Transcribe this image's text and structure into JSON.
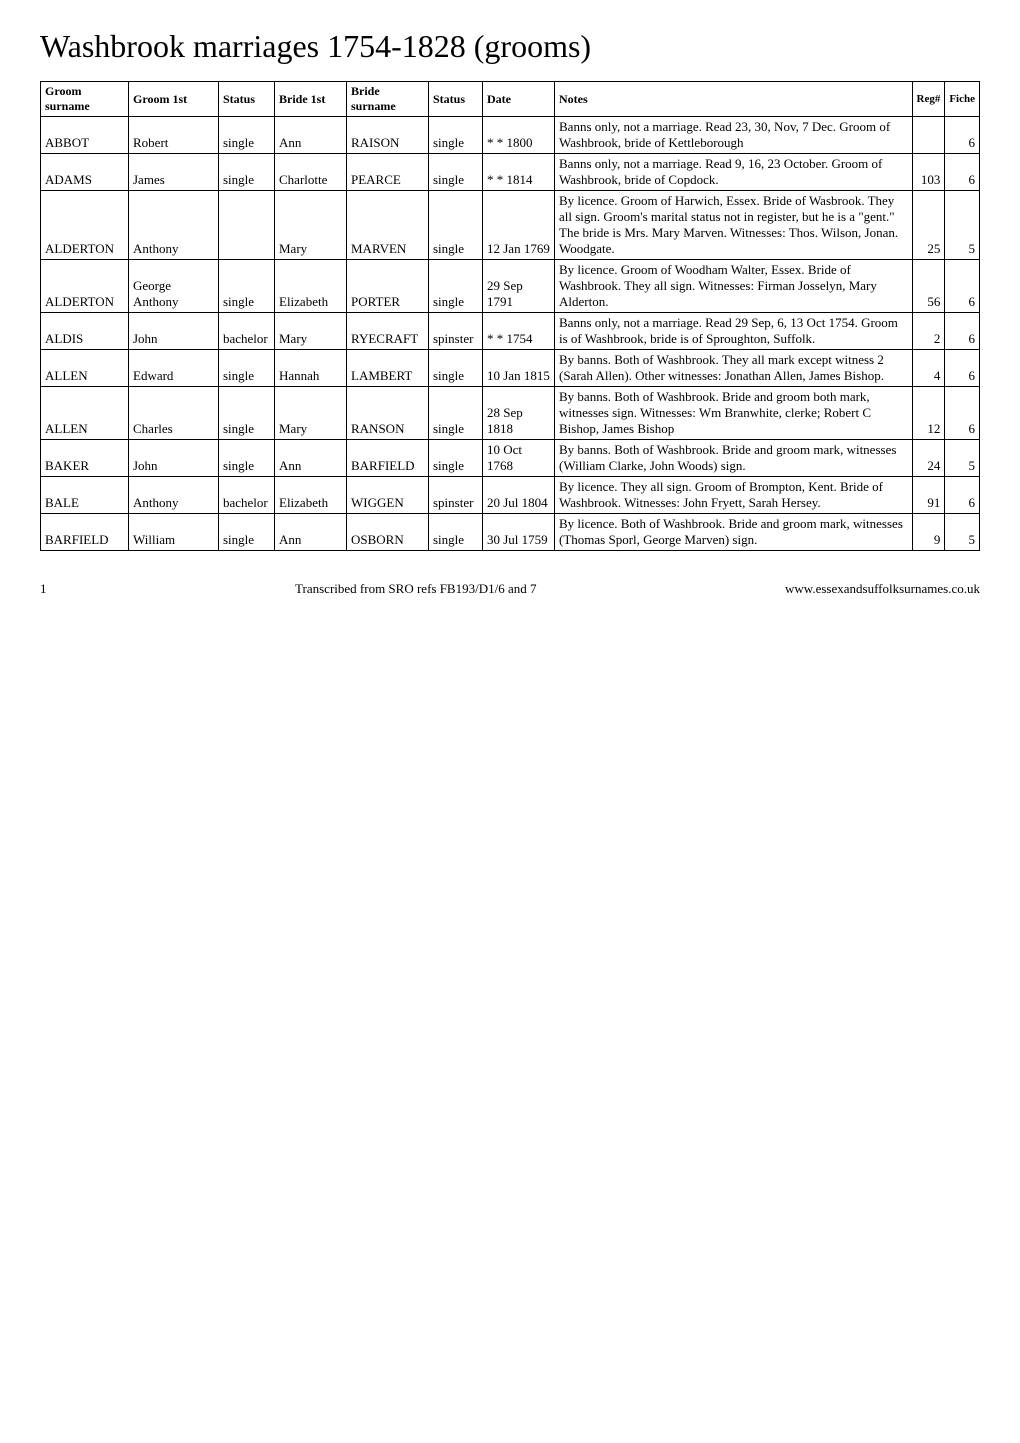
{
  "title": "Washbrook marriages 1754-1828 (grooms)",
  "columns": [
    "Groom surname",
    "Groom 1st",
    "Status",
    "Bride 1st",
    "Bride surname",
    "Status",
    "Date",
    "Notes",
    "Reg#",
    "Fiche"
  ],
  "rows": [
    {
      "groom_surname": "ABBOT",
      "groom_1st": "Robert",
      "status1": "single",
      "bride_1st": "Ann",
      "bride_surname": "RAISON",
      "status2": "single",
      "date": "* * 1800",
      "notes": "Banns only, not a marriage. Read 23, 30, Nov, 7 Dec. Groom of Washbrook, bride of Kettleborough",
      "reg": "",
      "fiche": "6"
    },
    {
      "groom_surname": "ADAMS",
      "groom_1st": "James",
      "status1": "single",
      "bride_1st": "Charlotte",
      "bride_surname": "PEARCE",
      "status2": "single",
      "date": "* * 1814",
      "notes": "Banns only, not a marriage. Read 9, 16, 23 October. Groom of Washbrook, bride of Copdock.",
      "reg": "103",
      "fiche": "6"
    },
    {
      "groom_surname": "ALDERTON",
      "groom_1st": "Anthony",
      "status1": "",
      "bride_1st": "Mary",
      "bride_surname": "MARVEN",
      "status2": "single",
      "date": "12 Jan 1769",
      "notes": "By licence. Groom of Harwich, Essex. Bride of Wasbrook. They all sign. Groom's marital status not in register, but he is a \"gent.\" The bride is Mrs. Mary Marven. Witnesses: Thos. Wilson, Jonan. Woodgate.",
      "reg": "25",
      "fiche": "5"
    },
    {
      "groom_surname": "ALDERTON",
      "groom_1st": "George Anthony",
      "status1": "single",
      "bride_1st": "Elizabeth",
      "bride_surname": "PORTER",
      "status2": "single",
      "date": "29 Sep 1791",
      "notes": "By licence. Groom of Woodham Walter, Essex. Bride of Washbrook. They all sign. Witnesses: Firman Josselyn, Mary Alderton.",
      "reg": "56",
      "fiche": "6"
    },
    {
      "groom_surname": "ALDIS",
      "groom_1st": "John",
      "status1": "bachelor",
      "bride_1st": "Mary",
      "bride_surname": "RYECRAFT",
      "status2": "spinster",
      "date": "* * 1754",
      "notes": "Banns only, not a marriage. Read 29 Sep, 6, 13 Oct 1754. Groom is of Washbrook, bride is of Sproughton, Suffolk.",
      "reg": "2",
      "fiche": "6"
    },
    {
      "groom_surname": "ALLEN",
      "groom_1st": "Edward",
      "status1": "single",
      "bride_1st": "Hannah",
      "bride_surname": "LAMBERT",
      "status2": "single",
      "date": "10 Jan 1815",
      "notes": "By banns. Both of Washbrook. They all mark except witness 2 (Sarah Allen). Other witnesses: Jonathan Allen, James Bishop.",
      "reg": "4",
      "fiche": "6"
    },
    {
      "groom_surname": "ALLEN",
      "groom_1st": "Charles",
      "status1": "single",
      "bride_1st": "Mary",
      "bride_surname": "RANSON",
      "status2": "single",
      "date": "28 Sep 1818",
      "notes": "By banns. Both of Washbrook. Bride and groom both mark, witnesses sign. Witnesses: Wm Branwhite, clerke; Robert C Bishop, James Bishop",
      "reg": "12",
      "fiche": "6"
    },
    {
      "groom_surname": "BAKER",
      "groom_1st": "John",
      "status1": "single",
      "bride_1st": "Ann",
      "bride_surname": "BARFIELD",
      "status2": "single",
      "date": "10 Oct 1768",
      "notes": "By banns. Both of Washbrook. Bride and groom mark, witnesses (William Clarke, John Woods) sign.",
      "reg": "24",
      "fiche": "5"
    },
    {
      "groom_surname": "BALE",
      "groom_1st": "Anthony",
      "status1": "bachelor",
      "bride_1st": "Elizabeth",
      "bride_surname": "WIGGEN",
      "status2": "spinster",
      "date": "20 Jul 1804",
      "notes": "By licence. They all sign. Groom of Brompton, Kent. Bride of Washbrook. Witnesses: John Fryett, Sarah Hersey.",
      "reg": "91",
      "fiche": "6"
    },
    {
      "groom_surname": "BARFIELD",
      "groom_1st": "William",
      "status1": "single",
      "bride_1st": "Ann",
      "bride_surname": "OSBORN",
      "status2": "single",
      "date": "30 Jul 1759",
      "notes": "By licence. Both of Washbrook. Bride and groom mark, witnesses (Thomas Sporl, George Marven) sign.",
      "reg": "9",
      "fiche": "5"
    }
  ],
  "footer": {
    "page_number": "1",
    "center_text": "Transcribed from SRO refs FB193/D1/6 and 7",
    "right_text": "www.essexandsuffolksurnames.co.uk"
  }
}
